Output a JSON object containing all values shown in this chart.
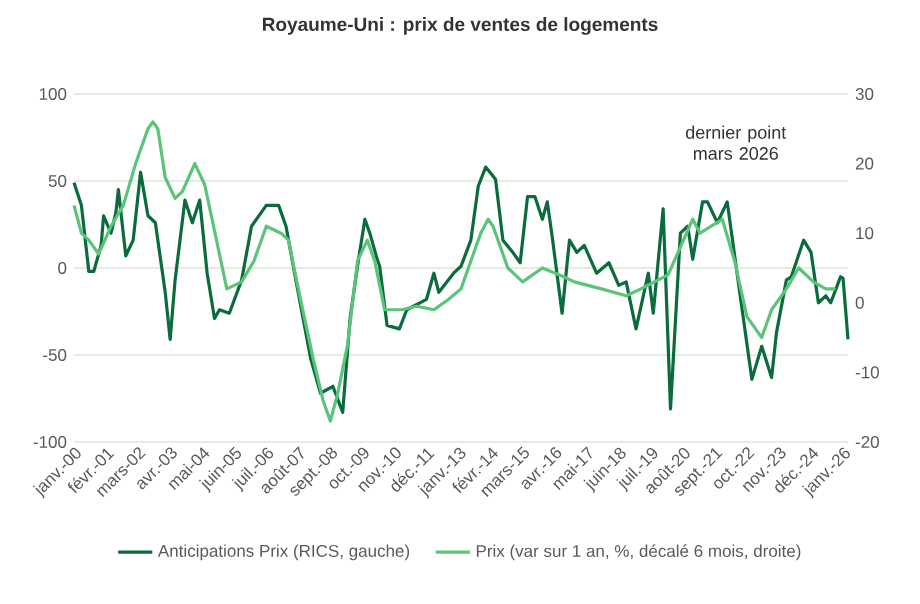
{
  "chart_data": {
    "type": "line",
    "title": "Royaume-Uni : prix de ventes de logements",
    "annotations": [
      "dernier point mars 2026"
    ],
    "legend": "bottom",
    "grid": "y",
    "xlim": [
      "2000-01",
      "2026-03"
    ],
    "xticks": [
      {
        "value": "2000-01",
        "label": "janv.-00"
      },
      {
        "value": "2001-02",
        "label": "févr.-01"
      },
      {
        "value": "2002-03",
        "label": "mars-02"
      },
      {
        "value": "2003-04",
        "label": "avr.-03"
      },
      {
        "value": "2004-05",
        "label": "mai-04"
      },
      {
        "value": "2005-06",
        "label": "juin-05"
      },
      {
        "value": "2006-07",
        "label": "juil.-06"
      },
      {
        "value": "2007-08",
        "label": "août-07"
      },
      {
        "value": "2008-09",
        "label": "sept.-08"
      },
      {
        "value": "2009-10",
        "label": "oct.-09"
      },
      {
        "value": "2010-11",
        "label": "nov.-10"
      },
      {
        "value": "2011-12",
        "label": "déc.-11"
      },
      {
        "value": "2013-01",
        "label": "janv.-13"
      },
      {
        "value": "2014-02",
        "label": "févr.-14"
      },
      {
        "value": "2015-03",
        "label": "mars-15"
      },
      {
        "value": "2016-04",
        "label": "avr.-16"
      },
      {
        "value": "2017-05",
        "label": "mai-17"
      },
      {
        "value": "2018-06",
        "label": "juin-18"
      },
      {
        "value": "2019-07",
        "label": "juil.-19"
      },
      {
        "value": "2020-08",
        "label": "août-20"
      },
      {
        "value": "2021-09",
        "label": "sept.-21"
      },
      {
        "value": "2022-10",
        "label": "oct.-22"
      },
      {
        "value": "2023-11",
        "label": "nov.-23"
      },
      {
        "value": "2024-12",
        "label": "déc.-24"
      },
      {
        "value": "2026-01",
        "label": "janv.-26"
      }
    ],
    "ylim": [
      -100,
      100
    ],
    "yticks": [
      -100,
      -50,
      0,
      50,
      100
    ],
    "y2lim": [
      -20,
      30
    ],
    "y2ticks": [
      -20,
      -10,
      0,
      10,
      20,
      30
    ],
    "series": [
      {
        "name": "Anticipations Prix (RICS, gauche)",
        "color": "#0a6b3c",
        "x": [
          "2000-01",
          "2000-04",
          "2000-07",
          "2000-09",
          "2000-12",
          "2001-01",
          "2001-04",
          "2001-06",
          "2001-07",
          "2001-10",
          "2002-01",
          "2002-04",
          "2002-07",
          "2002-10",
          "2003-02",
          "2003-04",
          "2003-06",
          "2003-10",
          "2004-01",
          "2004-04",
          "2004-07",
          "2004-10",
          "2004-12",
          "2005-04",
          "2005-09",
          "2006-01",
          "2006-07",
          "2006-12",
          "2007-03",
          "2007-07",
          "2008-01",
          "2008-05",
          "2008-10",
          "2009-02",
          "2009-05",
          "2009-08",
          "2009-11",
          "2010-01",
          "2010-04",
          "2010-05",
          "2010-08",
          "2011-01",
          "2011-04",
          "2011-12",
          "2012-03",
          "2012-05",
          "2012-11",
          "2013-02",
          "2013-06",
          "2013-09",
          "2013-12",
          "2014-04",
          "2014-07",
          "2014-11",
          "2015-02",
          "2015-05",
          "2015-08",
          "2015-11",
          "2016-01",
          "2016-03",
          "2016-07",
          "2016-10",
          "2017-01",
          "2017-04",
          "2017-09",
          "2018-02",
          "2018-06",
          "2018-09",
          "2019-01",
          "2019-06",
          "2019-08",
          "2019-12",
          "2020-03",
          "2020-07",
          "2020-10",
          "2020-12",
          "2021-04",
          "2021-06",
          "2021-10",
          "2022-02",
          "2022-06",
          "2022-12",
          "2023-04",
          "2023-08",
          "2023-10",
          "2024-02",
          "2024-04",
          "2024-09",
          "2024-12",
          "2025-03",
          "2025-06",
          "2025-08",
          "2025-12",
          "2026-01",
          "2026-03"
        ],
        "values": [
          49,
          36,
          -2,
          -2,
          13,
          30,
          20,
          32,
          45,
          7,
          16,
          55,
          30,
          26,
          -14,
          -41,
          -7,
          39,
          26,
          39,
          -3,
          -29,
          -24,
          -26,
          -7,
          24,
          36,
          36,
          24,
          -7,
          -52,
          -72,
          -68,
          -83,
          -29,
          1,
          28,
          20,
          5,
          1,
          -33,
          -35,
          -24,
          -18,
          -3,
          -14,
          -3,
          1,
          16,
          47,
          58,
          51,
          16,
          9,
          3,
          41,
          41,
          28,
          38,
          18,
          -26,
          16,
          9,
          13,
          -3,
          3,
          -10,
          -8,
          -35,
          -3,
          -26,
          34,
          -81,
          20,
          24,
          5,
          38,
          38,
          26,
          38,
          -3,
          -64,
          -45,
          -63,
          -37,
          -7,
          -5,
          16,
          9,
          -20,
          -16,
          -20,
          -5,
          -6,
          -41
        ]
      },
      {
        "name": "Prix (var sur 1 an, %, décalé 6 mois, droite)",
        "color": "#5cc47a",
        "axis": "y2",
        "x": [
          "2000-01",
          "2000-04",
          "2000-07",
          "2000-11",
          "2001-04",
          "2001-09",
          "2002-02",
          "2002-07",
          "2002-09",
          "2002-11",
          "2003-02",
          "2003-06",
          "2003-09",
          "2004-02",
          "2004-06",
          "2004-09",
          "2005-03",
          "2005-09",
          "2006-02",
          "2006-07",
          "2007-01",
          "2007-04",
          "2007-08",
          "2008-02",
          "2008-06",
          "2008-09",
          "2008-12",
          "2009-04",
          "2009-08",
          "2009-12",
          "2010-03",
          "2010-07",
          "2011-02",
          "2011-08",
          "2012-03",
          "2012-09",
          "2013-02",
          "2013-08",
          "2013-10",
          "2014-01",
          "2014-03",
          "2014-09",
          "2015-03",
          "2015-11",
          "2016-06",
          "2016-12",
          "2017-11",
          "2018-09",
          "2019-03",
          "2020-02",
          "2020-12",
          "2021-03",
          "2021-12",
          "2022-05",
          "2022-10",
          "2023-04",
          "2023-08",
          "2024-02",
          "2024-07",
          "2025-01",
          "2025-06",
          "2025-10"
        ],
        "values": [
          14,
          10,
          9,
          7,
          11,
          14,
          20,
          25,
          26,
          25,
          18,
          15,
          16,
          20,
          17,
          12,
          2,
          3,
          6,
          11,
          10,
          9,
          2,
          -8,
          -14,
          -17,
          -13,
          -6,
          6,
          9,
          6,
          -1,
          -1,
          -0.5,
          -1,
          0.5,
          2,
          8,
          10,
          12,
          11,
          5,
          3,
          5,
          4,
          3,
          2,
          1,
          2,
          4,
          12,
          10,
          12,
          6,
          -2,
          -5,
          -1,
          2,
          5,
          3,
          2,
          2
        ]
      }
    ]
  }
}
